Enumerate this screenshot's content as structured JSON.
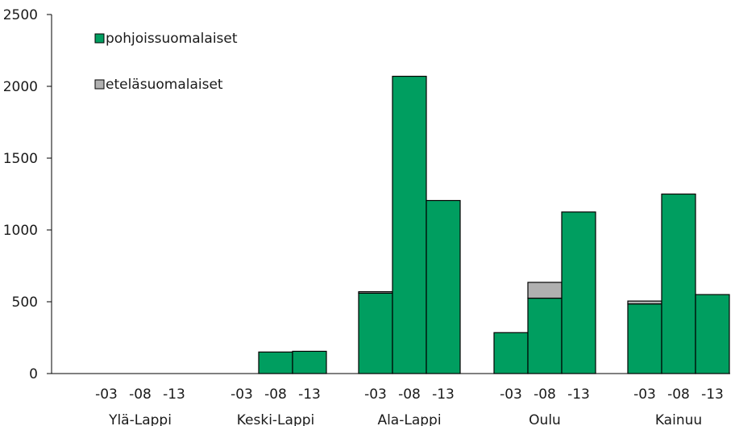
{
  "chart_data": {
    "type": "bar",
    "stacked": true,
    "title": "",
    "xlabel": "",
    "ylabel": "",
    "ylim": [
      0,
      2500
    ],
    "yticks": [
      0,
      500,
      1000,
      1500,
      2000,
      2500
    ],
    "grid": false,
    "legend_position": "top-left",
    "groups": [
      "Ylä-Lappi",
      "Keski-Lappi",
      "Ala-Lappi",
      "Oulu",
      "Kainuu"
    ],
    "subcategories": [
      "-03",
      "-08",
      "-13"
    ],
    "series": [
      {
        "name": "pohjoissuomalaiset",
        "color": "#009e60",
        "values": [
          [
            0,
            0,
            0
          ],
          [
            0,
            150,
            155
          ],
          [
            560,
            2070,
            1205
          ],
          [
            285,
            525,
            1125
          ],
          [
            485,
            1250,
            550
          ]
        ]
      },
      {
        "name": "eteläsuomalaiset",
        "color": "#b0b0b0",
        "values": [
          [
            0,
            0,
            0
          ],
          [
            0,
            0,
            0
          ],
          [
            10,
            0,
            0
          ],
          [
            0,
            110,
            0
          ],
          [
            20,
            0,
            0
          ]
        ]
      }
    ]
  }
}
